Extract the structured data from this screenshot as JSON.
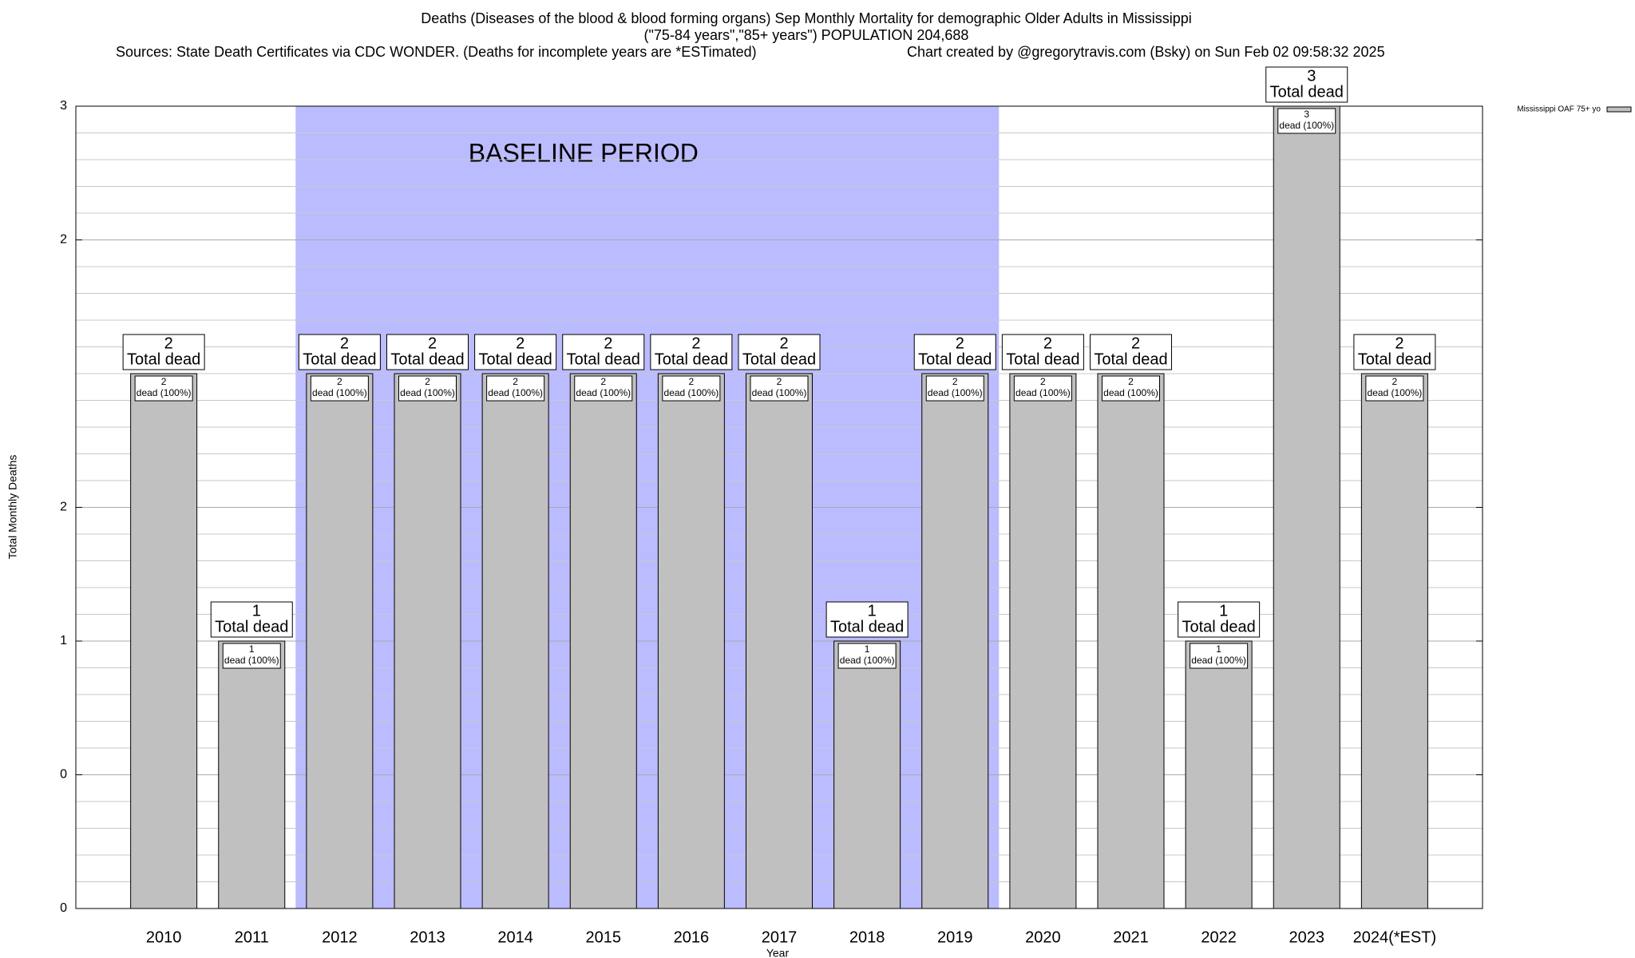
{
  "chart_data": {
    "type": "bar",
    "title": "Deaths (Diseases of the blood & blood forming organs) Sep Monthly Mortality for demographic Older Adults in Mississippi",
    "subtitle": "(\"75-84 years\",\"85+ years\") POPULATION 204,688",
    "sources": "Sources: State Death Certificates via CDC WONDER. (Deaths for incomplete years are *ESTimated)",
    "credit": "Chart created by @gregorytravis.com (Bsky) on Sun Feb 02 09:58:32 2025",
    "x_label": "Year",
    "y_label": "Total Monthly Deaths",
    "categories": [
      "2010",
      "2011",
      "2012",
      "2013",
      "2014",
      "2015",
      "2016",
      "2017",
      "2018",
      "2019",
      "2020",
      "2021",
      "2022",
      "2023",
      "2024(*EST)"
    ],
    "series": [
      {
        "name": "Mississippi OAF 75+ yo",
        "color": "#c0c0c0",
        "values": [
          2,
          1,
          2,
          2,
          2,
          2,
          2,
          2,
          1,
          2,
          2,
          2,
          1,
          3,
          2
        ]
      }
    ],
    "total_label_text": "Total dead",
    "inner_label_text": "dead (100%)",
    "baseline": {
      "label": "BASELINE PERIOD",
      "start": "2012",
      "end": "2019",
      "color": "#bbbbff"
    },
    "ylim": [
      0,
      3
    ],
    "yticks": [
      0,
      {
        "value": 0.5,
        "label": "0"
      },
      1,
      {
        "value": 1.5,
        "label": "2"
      },
      {
        "value": 2.5,
        "label": "2"
      },
      3
    ],
    "grid": true,
    "legend": "top-right"
  }
}
